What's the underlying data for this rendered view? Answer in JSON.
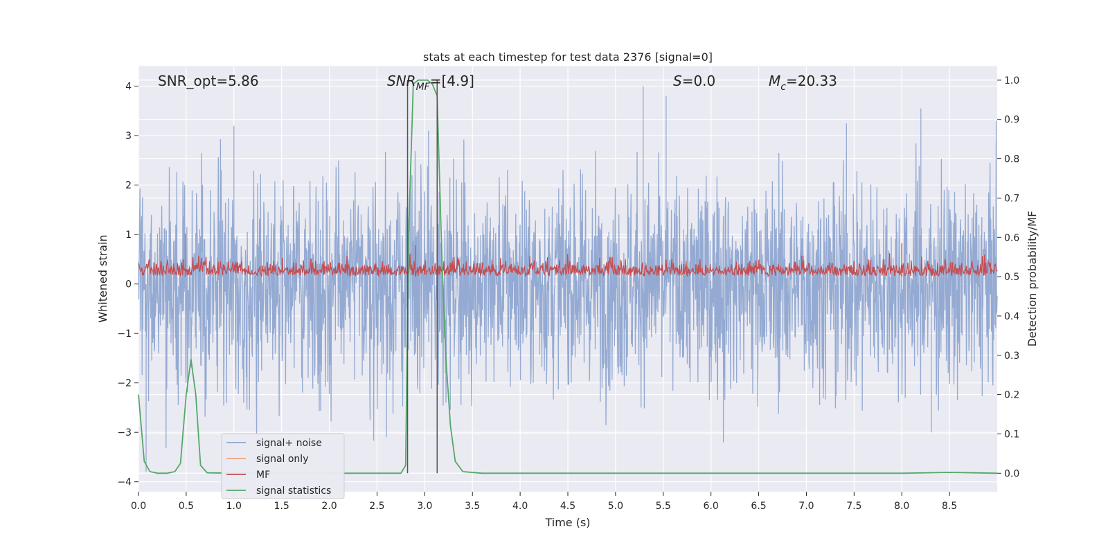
{
  "chart_data": {
    "type": "line",
    "title": "stats at each timestep for test data 2376 [signal=0]",
    "xlabel": "Time (s)",
    "ylabel": "Whitened strain",
    "y2label": "Detection probability/MF",
    "xlim": [
      0.0,
      9.0
    ],
    "ylim": [
      -4.2,
      4.4
    ],
    "y2lim": [
      -0.047,
      1.035
    ],
    "xticks": [
      "0.0",
      "0.5",
      "1.0",
      "1.5",
      "2.0",
      "2.5",
      "3.0",
      "3.5",
      "4.0",
      "4.5",
      "5.0",
      "5.5",
      "6.0",
      "6.5",
      "7.0",
      "7.5",
      "8.0",
      "8.5"
    ],
    "yticks": [
      "4",
      "3",
      "2",
      "1",
      "0",
      "−1",
      "−2",
      "−3",
      "−4"
    ],
    "y2ticks": [
      "1.0",
      "0.9",
      "0.8",
      "0.7",
      "0.6",
      "0.5",
      "0.4",
      "0.3",
      "0.2",
      "0.1",
      "0.0"
    ],
    "grid": true,
    "legend_position": "lower-left",
    "annotations": {
      "snr_opt": "SNR_opt=5.86",
      "snr_mf_main": "SNR",
      "snr_mf_sub": "MF",
      "snr_mf_val": "=[4.9]",
      "s_main": "S",
      "s_val": "=0.0",
      "mc_main": "M",
      "mc_sub": "c",
      "mc_val": "=20.33"
    },
    "vlines": [
      2.82,
      3.13
    ],
    "series": [
      {
        "name": "signal+ noise",
        "color": "#8fa6d0",
        "axis": "left",
        "kind": "noise",
        "envelope_abs_max": 4.0,
        "peaks": [
          [
            1.0,
            3.2
          ],
          [
            2.82,
            3.0
          ],
          [
            3.04,
            3.1
          ],
          [
            5.29,
            4.0
          ],
          [
            5.53,
            3.8
          ],
          [
            7.42,
            3.25
          ],
          [
            8.2,
            3.55
          ],
          [
            8.99,
            3.3
          ],
          [
            6.13,
            -3.2
          ],
          [
            8.31,
            -3.0
          ],
          [
            0.08,
            -3.8
          ],
          [
            2.6,
            -3.1
          ]
        ]
      },
      {
        "name": "signal only",
        "color": "#f0a080",
        "axis": "left",
        "kind": "empty"
      },
      {
        "name": "MF",
        "color": "#c44e52",
        "axis": "right",
        "kind": "noise",
        "baseline": 0.5,
        "range": [
          0.495,
          0.56
        ],
        "peaks": [
          [
            0.49,
            0.61
          ],
          [
            2.9,
            0.58
          ],
          [
            8.0,
            0.585
          ]
        ]
      },
      {
        "name": "signal statistics",
        "color": "#55a868",
        "axis": "right",
        "kind": "line",
        "x": [
          0.0,
          0.06,
          0.12,
          0.2,
          0.3,
          0.38,
          0.44,
          0.5,
          0.55,
          0.6,
          0.65,
          0.72,
          1.0,
          2.0,
          2.75,
          2.8,
          2.83,
          2.88,
          2.93,
          3.03,
          3.08,
          3.13,
          3.18,
          3.22,
          3.27,
          3.32,
          3.4,
          3.6,
          4.0,
          6.0,
          8.0,
          8.5,
          9.0
        ],
        "y": [
          0.2,
          0.03,
          0.004,
          0.0,
          0.0,
          0.004,
          0.025,
          0.2,
          0.29,
          0.2,
          0.02,
          0.001,
          0.0,
          0.0,
          0.0,
          0.02,
          0.6,
          0.99,
          1.0,
          1.0,
          0.99,
          0.96,
          0.55,
          0.3,
          0.12,
          0.03,
          0.004,
          0.0,
          0.0,
          0.0,
          0.0,
          0.002,
          0.0
        ]
      }
    ]
  }
}
